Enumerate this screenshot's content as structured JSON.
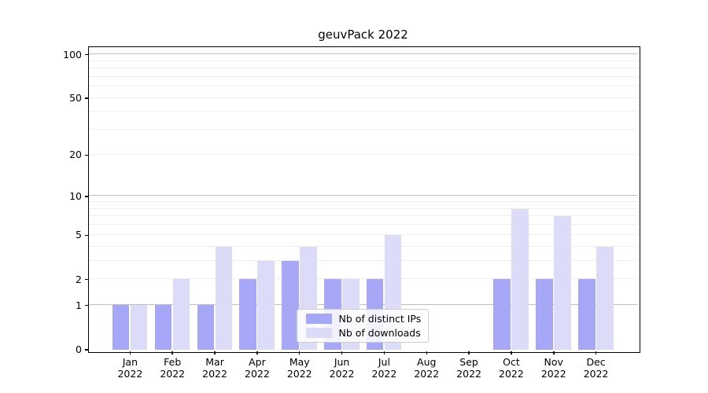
{
  "title": "geuvPack 2022",
  "colors": {
    "background": "#ffffff",
    "ips_bar": "#a7a7f7",
    "downloads_bar": "#dcdcf8",
    "grid_major": "#c0c0c0",
    "grid_minor": "#eeeeee",
    "axis": "#000000",
    "legend_border": "#cccccc"
  },
  "legend": {
    "items": [
      {
        "label": "Nb of distinct IPs",
        "swatch": "ips-swatch"
      },
      {
        "label": "Nb of downloads",
        "swatch": "downloads-swatch"
      }
    ]
  },
  "chart_data": {
    "type": "bar",
    "title": "geuvPack 2022",
    "categories": [
      "Jan 2022",
      "Feb 2022",
      "Mar 2022",
      "Apr 2022",
      "May 2022",
      "Jun 2022",
      "Jul 2022",
      "Aug 2022",
      "Sep 2022",
      "Oct 2022",
      "Nov 2022",
      "Dec 2022"
    ],
    "series": [
      {
        "name": "Nb of distinct IPs",
        "color": "#a7a7f7",
        "values": [
          1,
          1,
          1,
          2,
          3,
          2,
          2,
          0,
          0,
          2,
          2,
          2
        ]
      },
      {
        "name": "Nb of downloads",
        "color": "#dcdcf8",
        "values": [
          1,
          2,
          4,
          3,
          4,
          2,
          5,
          0,
          0,
          8,
          7,
          4
        ]
      }
    ],
    "xlabel": "",
    "ylabel": "",
    "yscale": "log1p",
    "ylim": [
      0,
      113
    ],
    "y_ticks": [
      0,
      1,
      2,
      5,
      10,
      20,
      50,
      100
    ],
    "y_major_gridlines": [
      1,
      10,
      100
    ],
    "y_minor_gridlines": [
      2,
      3,
      4,
      5,
      6,
      7,
      8,
      9,
      20,
      30,
      40,
      50,
      60,
      70,
      80,
      90
    ],
    "grid": true,
    "legend_position": "lower-center-inside"
  }
}
